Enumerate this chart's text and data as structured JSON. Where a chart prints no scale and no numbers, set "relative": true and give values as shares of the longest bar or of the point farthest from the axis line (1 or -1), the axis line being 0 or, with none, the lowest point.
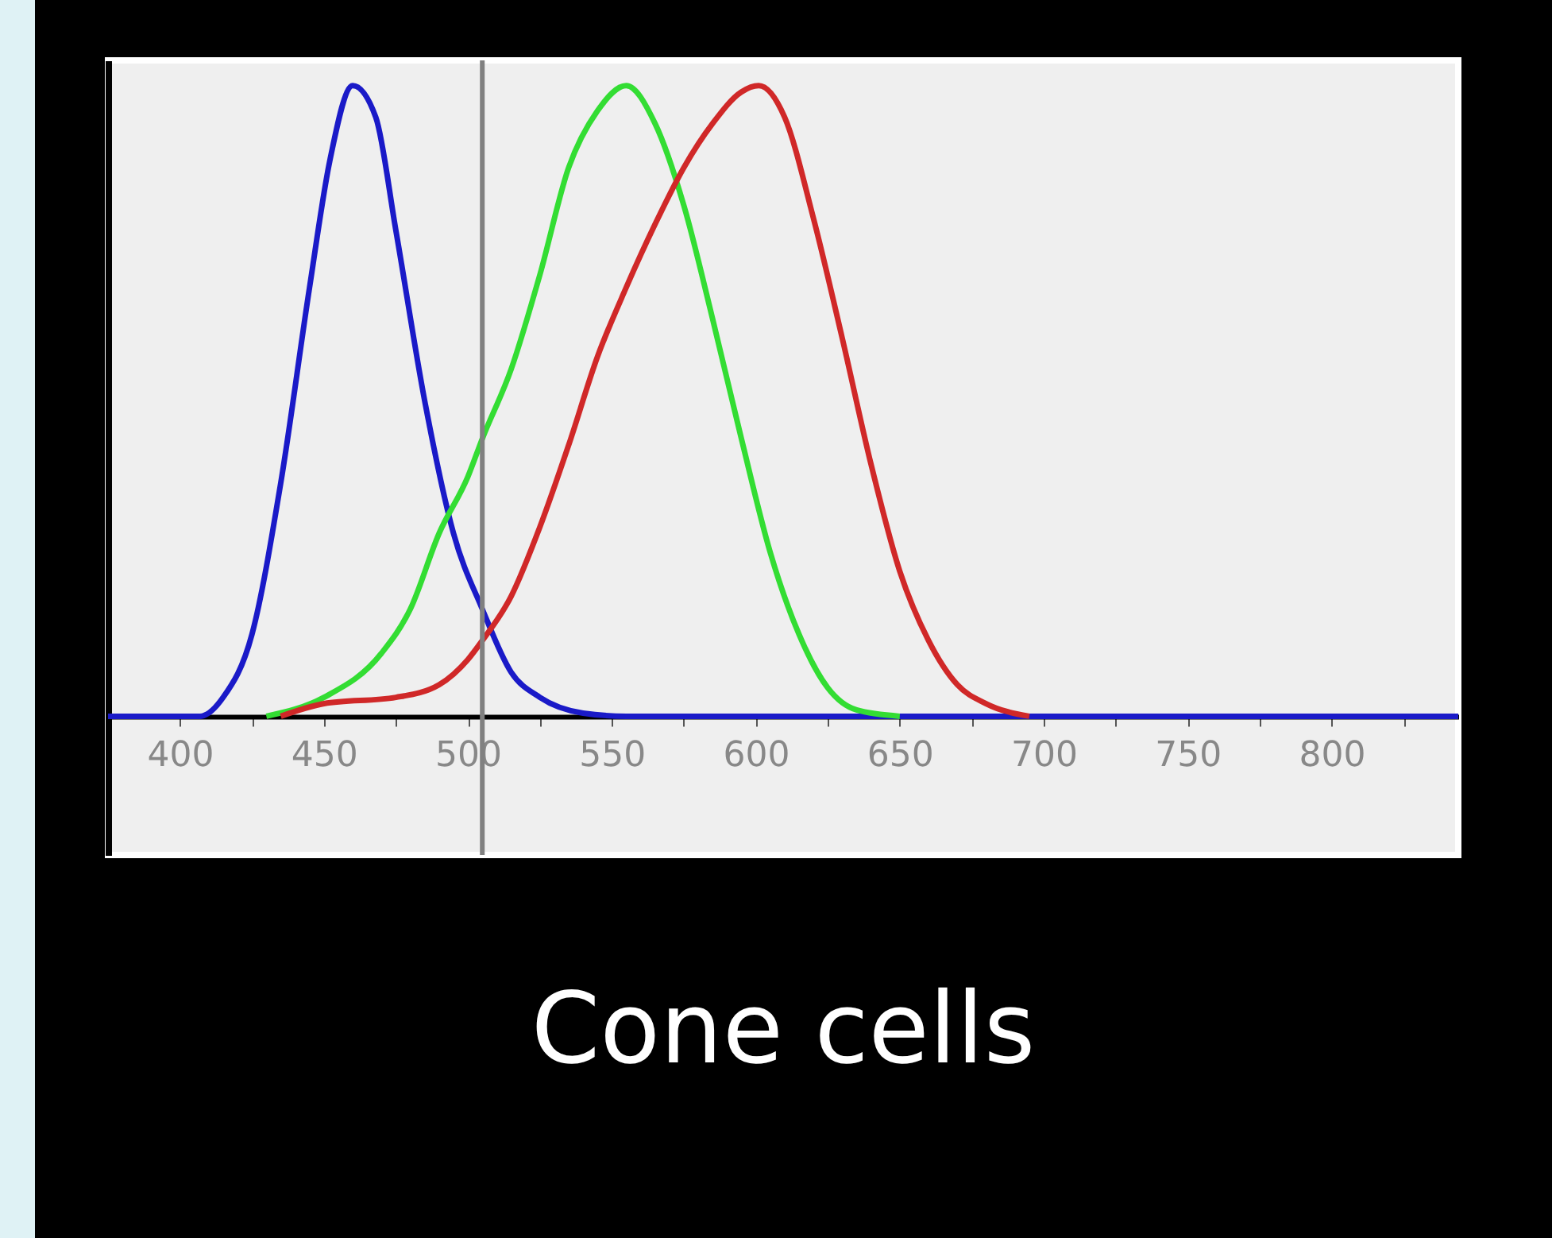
{
  "chart_data": {
    "type": "line",
    "title": "Cone cells",
    "relative": true,
    "xlim": [
      375,
      844
    ],
    "xticks": [
      400,
      {
        "value": 425,
        "label": null
      },
      450,
      {
        "value": 475,
        "label": null
      },
      500,
      {
        "value": 525,
        "label": null
      },
      550,
      {
        "value": 575,
        "label": null
      },
      600,
      {
        "value": 625,
        "label": null
      },
      650,
      {
        "value": 675,
        "label": null
      },
      700,
      {
        "value": 725,
        "label": null
      },
      750,
      {
        "value": 775,
        "label": null
      },
      800,
      {
        "value": 825,
        "label": null
      }
    ],
    "grid": false,
    "legend": false,
    "ref_lines": [
      {
        "axis": "x",
        "value": 505,
        "color": "#808080"
      }
    ],
    "series": [
      {
        "color": "#1a1ac8",
        "x": [
          375,
          407,
          415,
          425,
          435,
          445,
          452,
          460,
          468,
          475,
          485,
          495,
          505,
          515,
          525,
          540,
          555,
          844
        ],
        "values": [
          0,
          0,
          0.03,
          0.13,
          0.37,
          0.68,
          0.88,
          1,
          0.95,
          0.77,
          0.5,
          0.29,
          0.17,
          0.07,
          0.03,
          0.005,
          0,
          0
        ]
      },
      {
        "color": "#33dd33",
        "x": [
          430,
          450,
          470,
          480,
          490,
          500,
          505,
          515,
          525,
          535,
          545,
          555,
          565,
          575,
          585,
          595,
          605,
          615,
          625,
          635,
          650
        ],
        "values": [
          0,
          0.03,
          0.1,
          0.17,
          0.29,
          0.38,
          0.44,
          0.55,
          0.7,
          0.87,
          0.96,
          1,
          0.94,
          0.81,
          0.63,
          0.44,
          0.26,
          0.13,
          0.045,
          0.01,
          0
        ]
      },
      {
        "color": "#d02828",
        "x": [
          435,
          450,
          475,
          490,
          500,
          505,
          515,
          525,
          535,
          545,
          555,
          565,
          575,
          585,
          595,
          601,
          610,
          620,
          630,
          640,
          650,
          660,
          670,
          680,
          695
        ],
        "values": [
          0,
          0.02,
          0.03,
          0.05,
          0.09,
          0.12,
          0.19,
          0.3,
          0.43,
          0.57,
          0.68,
          0.78,
          0.87,
          0.94,
          0.99,
          1,
          0.95,
          0.79,
          0.6,
          0.4,
          0.23,
          0.12,
          0.05,
          0.02,
          0
        ]
      }
    ]
  }
}
